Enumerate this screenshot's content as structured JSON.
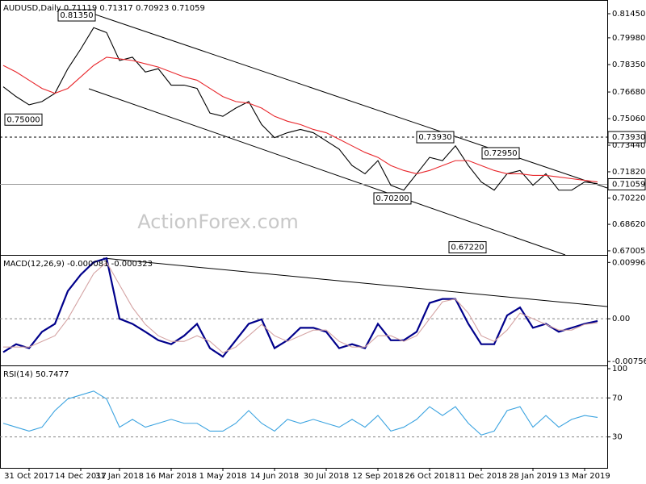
{
  "chart_data": [
    {
      "type": "line",
      "title": "AUDUSD,Daily  0.71119 0.71317 0.70923 0.71059",
      "watermark": "ActionForex.com",
      "ylim": [
        0.66757,
        0.82285
      ],
      "yticks": [
        {
          "value": 0.8145,
          "label": "0.81450"
        },
        {
          "value": 0.7998,
          "label": "0.79980"
        },
        {
          "value": 0.7835,
          "label": "0.78350"
        },
        {
          "value": 0.7668,
          "label": "0.76680"
        },
        {
          "value": 0.7506,
          "label": "0.75060"
        },
        {
          "value": 0.7344,
          "label": "0.73440"
        },
        {
          "value": 0.7182,
          "label": "0.71820"
        },
        {
          "value": 0.7022,
          "label": "0.70220"
        },
        {
          "value": 0.6862,
          "label": "0.68620"
        },
        0.67005
      ],
      "series": [
        {
          "color": "#000000",
          "values": [
            0.77,
            0.764,
            0.759,
            0.761,
            0.766,
            0.781,
            0.793,
            0.806,
            0.803,
            0.786,
            0.788,
            0.779,
            0.781,
            0.771,
            0.771,
            0.769,
            0.754,
            0.752,
            0.757,
            0.761,
            0.747,
            0.739,
            0.742,
            0.744,
            0.742,
            0.737,
            0.732,
            0.722,
            0.717,
            0.725,
            0.71,
            0.707,
            0.717,
            0.727,
            0.725,
            0.734,
            0.722,
            0.712,
            0.707,
            0.717,
            0.719,
            0.71,
            0.717,
            0.707,
            0.707,
            0.712,
            0.711
          ]
        },
        {
          "color": "#e8262b",
          "values": [
            0.783,
            0.779,
            0.774,
            0.769,
            0.766,
            0.769,
            0.776,
            0.783,
            0.788,
            0.787,
            0.786,
            0.784,
            0.782,
            0.779,
            0.776,
            0.774,
            0.769,
            0.764,
            0.761,
            0.76,
            0.757,
            0.752,
            0.749,
            0.747,
            0.744,
            0.742,
            0.738,
            0.734,
            0.73,
            0.727,
            0.722,
            0.719,
            0.717,
            0.719,
            0.722,
            0.725,
            0.725,
            0.722,
            0.719,
            0.717,
            0.717,
            0.716,
            0.716,
            0.715,
            0.714,
            0.713,
            0.712
          ]
        }
      ],
      "hlines": [
        {
          "value": 0.7393,
          "label": "0.73930",
          "style": "dashed"
        },
        {
          "value": 0.71059,
          "label": "0.71059",
          "style": "solid"
        }
      ],
      "annotations": [
        {
          "value": 0.8135,
          "label": "0.81350"
        },
        {
          "value": 0.75,
          "label": "0.75000"
        },
        {
          "value": 0.7393,
          "label": "0.73930"
        },
        {
          "value": 0.7295,
          "label": "0.72950"
        },
        {
          "value": 0.702,
          "label": "0.70200"
        },
        {
          "value": 0.6722,
          "label": "0.67220"
        }
      ]
    },
    {
      "type": "line",
      "title": "MACD(12,26,9) -0.000081 -0.000323",
      "ylim": [
        -0.00825,
        0.01115
      ],
      "yticks": [
        0.009964,
        {
          "value": 0,
          "label": "0.00"
        },
        -0.00756
      ],
      "grid": [
        0
      ],
      "series": [
        {
          "color": "#00008b",
          "values": [
            -0.0059,
            -0.0045,
            -0.0052,
            -0.0023,
            -0.0009,
            0.0049,
            0.0078,
            0.01,
            0.0107,
            0.0,
            -0.0009,
            -0.0023,
            -0.0038,
            -0.0045,
            -0.003,
            -0.0009,
            -0.0052,
            -0.0067,
            -0.0038,
            -0.0009,
            -0.0001,
            -0.0052,
            -0.0038,
            -0.0016,
            -0.0016,
            -0.0023,
            -0.0052,
            -0.0045,
            -0.0052,
            -0.0009,
            -0.0038,
            -0.0038,
            -0.0023,
            0.0028,
            0.0035,
            0.0035,
            -0.0009,
            -0.0045,
            -0.0045,
            0.0006,
            0.002,
            -0.0016,
            -0.0009,
            -0.0023,
            -0.0016,
            -0.0009,
            -0.0004
          ]
        },
        {
          "color": "#d4a3a3",
          "values": [
            -0.005,
            -0.005,
            -0.005,
            -0.004,
            -0.003,
            0.0,
            0.004,
            0.008,
            0.01,
            0.006,
            0.002,
            -0.001,
            -0.003,
            -0.004,
            -0.004,
            -0.003,
            -0.004,
            -0.006,
            -0.005,
            -0.003,
            -0.001,
            -0.003,
            -0.004,
            -0.003,
            -0.002,
            -0.002,
            -0.004,
            -0.005,
            -0.005,
            -0.003,
            -0.003,
            -0.004,
            -0.003,
            0.0,
            0.003,
            0.0035,
            0.001,
            -0.003,
            -0.004,
            -0.002,
            0.001,
            0.0,
            -0.001,
            -0.002,
            -0.002,
            -0.001,
            -0.0007
          ]
        }
      ]
    },
    {
      "type": "line",
      "title": "RSI(14) 50.7477",
      "ylim": [
        -1.7,
        102.5
      ],
      "yticks": [
        100,
        70,
        30
      ],
      "grid": [
        70,
        30
      ],
      "series": [
        {
          "color": "#3ba3e0",
          "values": [
            44,
            40,
            36,
            40,
            57,
            69,
            73,
            77,
            69,
            40,
            48,
            40,
            44,
            48,
            44,
            44,
            36,
            36,
            44,
            57,
            44,
            36,
            48,
            44,
            48,
            44,
            40,
            48,
            40,
            52,
            36,
            40,
            48,
            61,
            52,
            61,
            44,
            32,
            36,
            57,
            61,
            40,
            52,
            40,
            48,
            52,
            50
          ]
        }
      ],
      "categories": [
        null,
        null,
        "31 Oct 2017",
        null,
        null,
        null,
        "14 Dec 2017",
        null,
        null,
        "31 Jan 2018",
        null,
        null,
        null,
        "16 Mar 2018",
        null,
        null,
        null,
        "1 May 2018",
        null,
        null,
        null,
        "14 Jun 2018",
        null,
        null,
        null,
        "30 Jul 2018",
        null,
        null,
        null,
        "12 Sep 2018",
        null,
        null,
        null,
        "26 Oct 2018",
        null,
        null,
        null,
        "11 Dec 2018",
        null,
        null,
        null,
        "28 Jan 2019",
        null,
        null,
        null,
        "13 Mar 2019",
        null
      ]
    }
  ]
}
